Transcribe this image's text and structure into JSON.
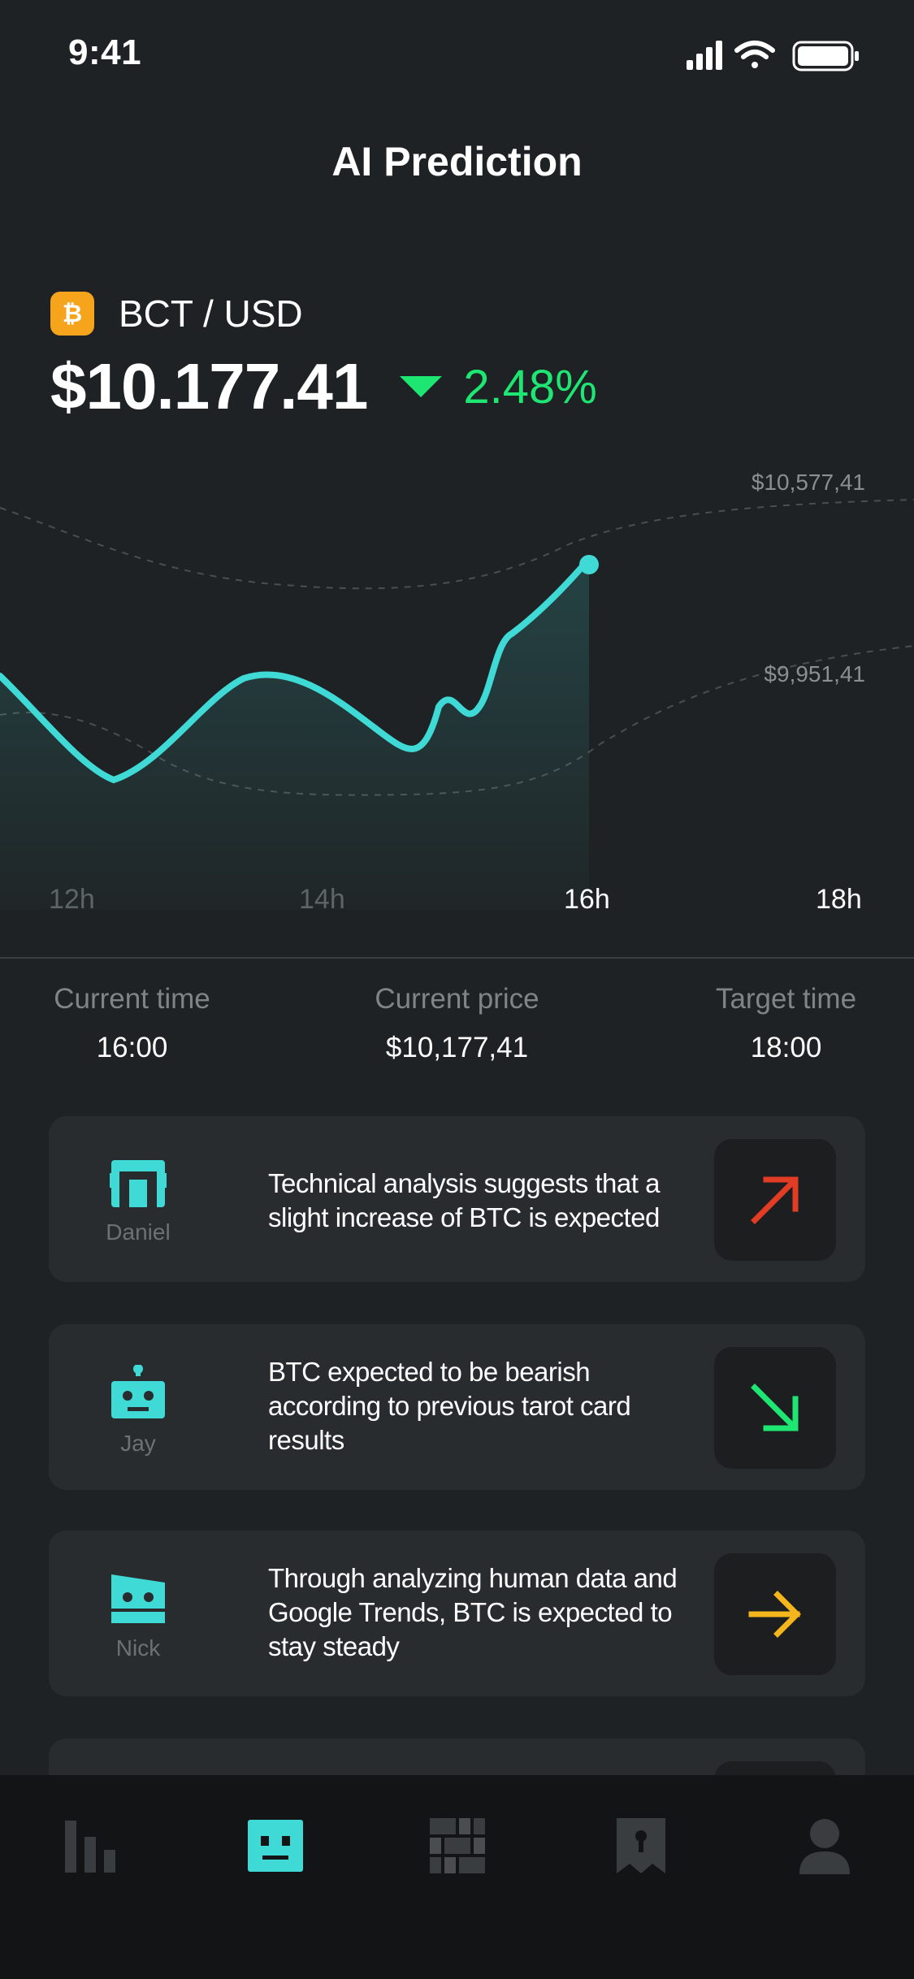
{
  "status_bar": {
    "time": "9:41"
  },
  "header": {
    "title": "AI Prediction"
  },
  "pair": {
    "coin_symbol": "₿",
    "label": "BCT / USD",
    "price": "$10.177.41",
    "change": "2.48%",
    "change_color": "#1ee673"
  },
  "chart": {
    "upper_label": "$10,577,41",
    "lower_label": "$9,951,41",
    "line_color": "#3fd9d6",
    "x_ticks": [
      "12h",
      "14h",
      "16h",
      "18h"
    ]
  },
  "info": {
    "current_time_label": "Current time",
    "current_time_value": "16:00",
    "current_price_label": "Current price",
    "current_price_value": "$10,177,41",
    "target_time_label": "Target time",
    "target_time_value": "18:00"
  },
  "predictions": [
    {
      "name": "Daniel",
      "text_lines": [
        "Technical analysis suggests that a",
        "slight increase of BTC is expected"
      ],
      "trend": "up",
      "trend_color": "#e23c24"
    },
    {
      "name": "Jay",
      "text_lines": [
        "BTC expected to be bearish",
        "according to previous tarot card",
        "results"
      ],
      "trend": "down",
      "trend_color": "#1ee673"
    },
    {
      "name": "Nick",
      "text_lines": [
        "Through analyzing human data and",
        "Google Trends, BTC is expected to",
        "stay steady"
      ],
      "trend": "steady",
      "trend_color": "#f5b51c"
    }
  ],
  "nav": {
    "items": [
      "chart-bars-icon",
      "robot-face-icon",
      "grid-icon",
      "bookmark-icon",
      "profile-icon"
    ],
    "active_color": "#3fd9d6",
    "inactive_color": "#3a3d40"
  }
}
